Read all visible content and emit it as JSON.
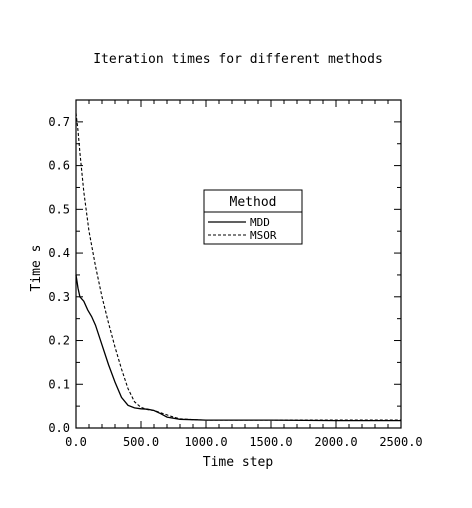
{
  "chart_data": {
    "type": "line",
    "title": "Iteration times for different methods",
    "xlabel": "Time step",
    "ylabel": "Time s",
    "xlim": [
      0,
      2500
    ],
    "ylim": [
      0,
      0.75
    ],
    "xticks": [
      0,
      500,
      1000,
      1500,
      2000,
      2500
    ],
    "xtick_labels": [
      "0.0",
      "500.0",
      "1000.0",
      "1500.0",
      "2000.0",
      "2500.0"
    ],
    "yticks": [
      0,
      0.1,
      0.2,
      0.3,
      0.4,
      0.5,
      0.6,
      0.7
    ],
    "ytick_labels": [
      "0.0",
      "0.1",
      "0.2",
      "0.3",
      "0.4",
      "0.5",
      "0.6",
      "0.7"
    ],
    "grid": false,
    "legend": {
      "title": "Method",
      "placement": "center-right"
    },
    "series": [
      {
        "name": "MDD",
        "style": "solid",
        "x": [
          0,
          15,
          30,
          60,
          90,
          120,
          150,
          200,
          250,
          300,
          350,
          400,
          450,
          500,
          550,
          600,
          650,
          700,
          800,
          900,
          1000,
          1500,
          2000,
          2500
        ],
        "y": [
          0.35,
          0.32,
          0.3,
          0.29,
          0.27,
          0.255,
          0.235,
          0.19,
          0.145,
          0.105,
          0.07,
          0.052,
          0.046,
          0.044,
          0.043,
          0.04,
          0.033,
          0.025,
          0.02,
          0.019,
          0.018,
          0.018,
          0.017,
          0.017
        ]
      },
      {
        "name": "MSOR",
        "style": "dashed",
        "x": [
          0,
          15,
          30,
          60,
          100,
          150,
          200,
          250,
          300,
          350,
          400,
          450,
          500,
          550,
          600,
          650,
          700,
          750,
          800,
          900,
          1000,
          1500,
          2000,
          2500
        ],
        "y": [
          0.72,
          0.68,
          0.63,
          0.54,
          0.45,
          0.37,
          0.3,
          0.24,
          0.185,
          0.135,
          0.09,
          0.06,
          0.047,
          0.042,
          0.04,
          0.035,
          0.03,
          0.025,
          0.021,
          0.019,
          0.018,
          0.018,
          0.018,
          0.018
        ]
      }
    ]
  }
}
